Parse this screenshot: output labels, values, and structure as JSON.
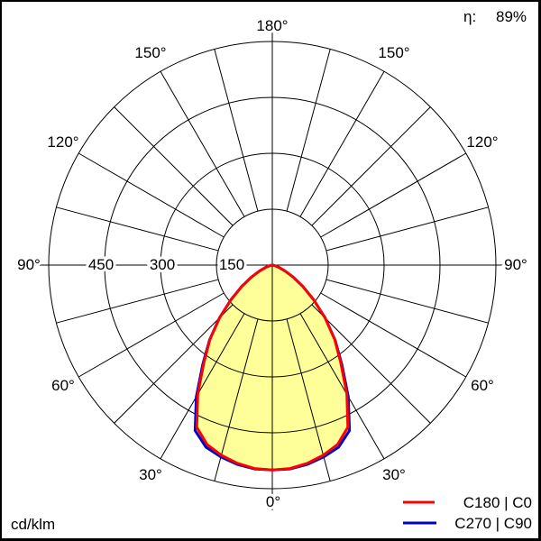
{
  "chart_data": {
    "type": "polar",
    "unit_label": "cd/klm",
    "efficiency_label": "η:",
    "efficiency_value": "89%",
    "radial_ticks": [
      "150",
      "300",
      "450"
    ],
    "radial_max": 600,
    "angle_labels": {
      "top": "180°",
      "upper_left": "150°",
      "upper_right": "150°",
      "mid_upper_left": "120°",
      "mid_upper_right": "120°",
      "left": "90°",
      "right": "90°",
      "mid_lower_left": "60°",
      "mid_lower_right": "60°",
      "lower_left": "30°",
      "lower_right": "30°",
      "bottom": "0°"
    },
    "angles_deg": [
      0,
      5,
      10,
      15,
      20,
      25,
      30,
      35,
      40,
      45,
      50,
      55,
      60,
      65,
      70,
      75,
      80,
      85,
      90
    ],
    "series": [
      {
        "name": "C180 | C0",
        "color": "#ff0000",
        "values": [
          550,
          548,
          540,
          528,
          512,
          480,
          400,
          320,
          260,
          200,
          145,
          100,
          65,
          38,
          20,
          10,
          4,
          1,
          0
        ]
      },
      {
        "name": "C270 | C90",
        "color": "#0000cc",
        "values": [
          550,
          549,
          543,
          533,
          520,
          490,
          408,
          325,
          262,
          201,
          145,
          100,
          65,
          38,
          20,
          10,
          4,
          1,
          0
        ]
      }
    ],
    "fill_color": "#ffff99"
  }
}
